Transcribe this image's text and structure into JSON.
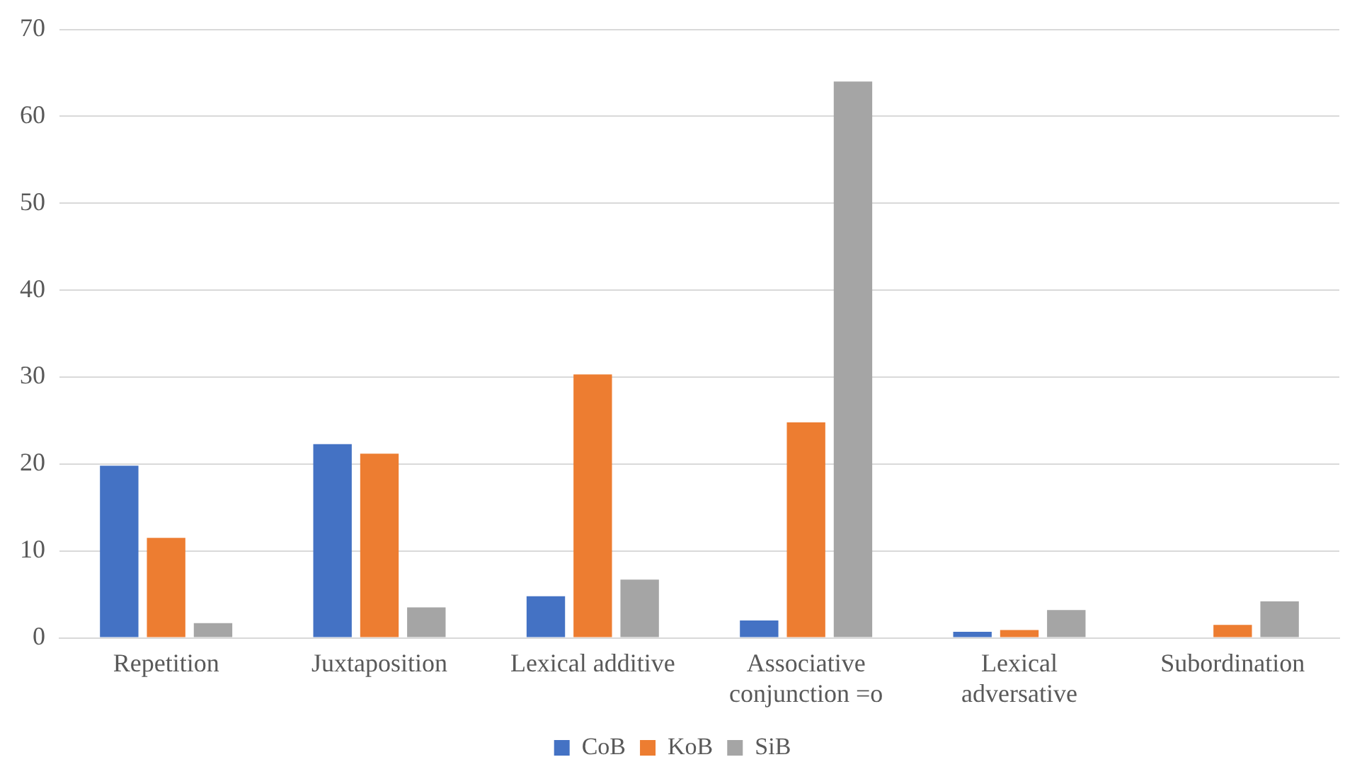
{
  "chart_data": {
    "type": "bar",
    "categories": [
      "Repetition",
      "Juxtaposition",
      "Lexical additive",
      "Associative conjunction =o",
      "Lexical adversative",
      "Subordination"
    ],
    "series": [
      {
        "name": "CoB",
        "color": "#4472c4",
        "values": [
          19.8,
          22.3,
          4.8,
          2.0,
          0.7,
          0
        ]
      },
      {
        "name": "KoB",
        "color": "#ed7d31",
        "values": [
          11.5,
          21.2,
          30.3,
          24.8,
          0.9,
          1.5
        ]
      },
      {
        "name": "SiB",
        "color": "#a5a5a5",
        "values": [
          1.7,
          3.5,
          6.7,
          64,
          3.2,
          4.2
        ]
      }
    ],
    "ylim": [
      0,
      70
    ],
    "yticks": [
      0,
      10,
      20,
      30,
      40,
      50,
      60,
      70
    ],
    "grid": "y",
    "legend": "bottom"
  }
}
